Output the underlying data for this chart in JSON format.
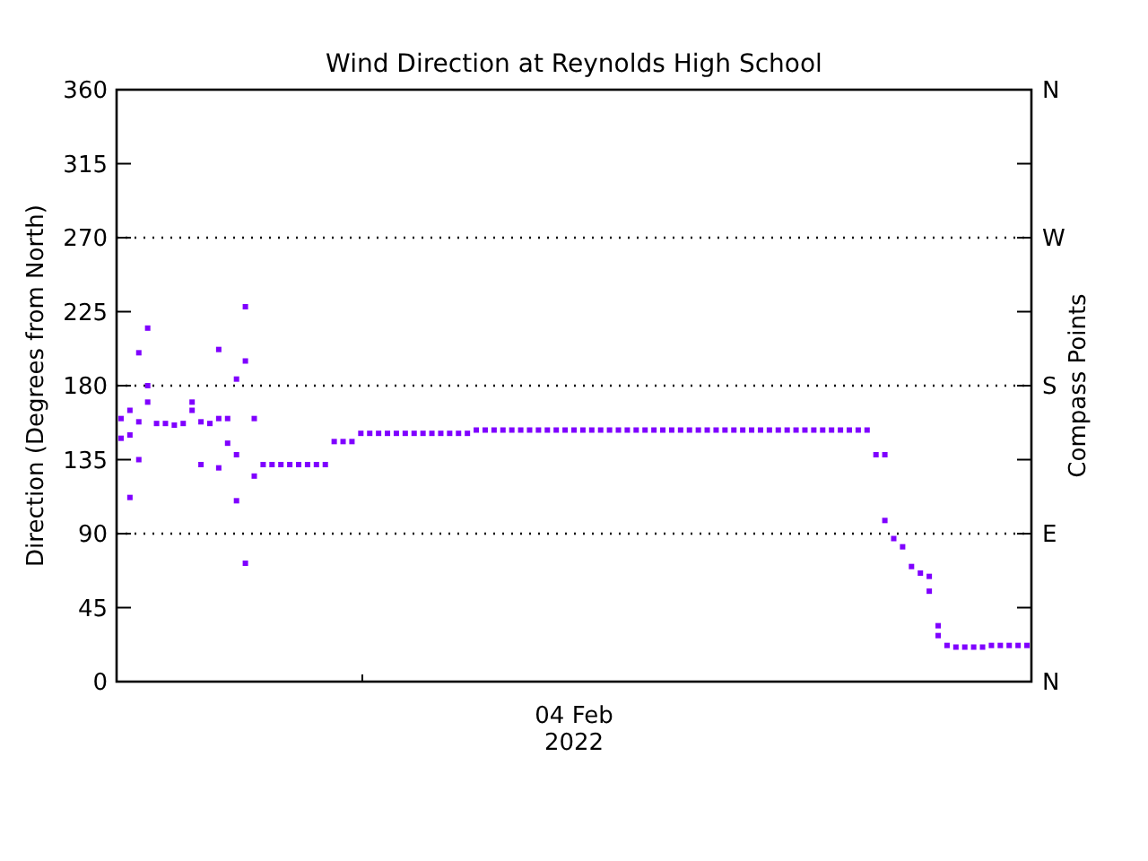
{
  "chart_data": {
    "type": "scatter",
    "title": "Wind Direction at Reynolds High School",
    "xlabel": "04 Feb 2022",
    "ylabel": "Direction (Degrees from North)",
    "y2label": "Compass Points",
    "categories": [
      null,
      null,
      null,
      null,
      null,
      null,
      null,
      null,
      null,
      null,
      null,
      null,
      null,
      null,
      null,
      null,
      null,
      null,
      null,
      null,
      null,
      null,
      null,
      null,
      null,
      null,
      null,
      null,
      null,
      null,
      null,
      null,
      null,
      null,
      null,
      null,
      null,
      null,
      null,
      null,
      null,
      null,
      null,
      null,
      null,
      null,
      null,
      null,
      null,
      null,
      null,
      null,
      null,
      null,
      null,
      null,
      null,
      null,
      null,
      null,
      null,
      null,
      null,
      null,
      null,
      null,
      null,
      null,
      null,
      null,
      null,
      null,
      null,
      null,
      null,
      null,
      null,
      null,
      null,
      null,
      null,
      null,
      null,
      null,
      null,
      null,
      null,
      null,
      null,
      null,
      null,
      null,
      null,
      null,
      null,
      null,
      null,
      null,
      null,
      null,
      null,
      null,
      null
    ],
    "ylim": [
      0,
      360
    ],
    "yticks": [
      0,
      45,
      90,
      135,
      180,
      225,
      270,
      315,
      360
    ],
    "y2_categories": [
      "N",
      null,
      "W",
      null,
      "S",
      null,
      "E",
      null,
      "N"
    ],
    "marker": "square",
    "ref_lines": [
      {
        "axis": "y",
        "value": 90,
        "color": "#000000",
        "line_style": "dotted"
      },
      {
        "axis": "y",
        "value": 180,
        "color": "#000000",
        "line_style": "dotted"
      },
      {
        "axis": "y",
        "value": 270,
        "color": "#000000",
        "line_style": "dotted"
      }
    ],
    "series": [
      {
        "color": "#7f00ff",
        "values": [
          160,
          150,
          158,
          180,
          157,
          157,
          156,
          157,
          165,
          158,
          157,
          160,
          160,
          138,
          195,
          160,
          132,
          132,
          132,
          132,
          132,
          132,
          132,
          132,
          146,
          146,
          146,
          151,
          151,
          151,
          151,
          151,
          151,
          151,
          151,
          151,
          151,
          151,
          151,
          151,
          153,
          153,
          153,
          153,
          153,
          153,
          153,
          153,
          153,
          153,
          153,
          153,
          153,
          153,
          153,
          153,
          153,
          153,
          153,
          153,
          153,
          153,
          153,
          153,
          153,
          153,
          153,
          153,
          153,
          153,
          153,
          153,
          153,
          153,
          153,
          153,
          153,
          153,
          153,
          153,
          153,
          153,
          153,
          153,
          153,
          138,
          138,
          87,
          82,
          70,
          66,
          64,
          28,
          22,
          21,
          21,
          21,
          21,
          22,
          22,
          22,
          22,
          22
        ]
      },
      {
        "color": "#7f00ff",
        "values": [
          148,
          112,
          200,
          215,
          null,
          null,
          null,
          null,
          170,
          132,
          null,
          202,
          145,
          110,
          72,
          125,
          null,
          null,
          null,
          null,
          null,
          null,
          null,
          null,
          null,
          null,
          null,
          null,
          null,
          null,
          null,
          null,
          null,
          null,
          null,
          null,
          null,
          null,
          null,
          null,
          null,
          null,
          null,
          null,
          null,
          null,
          null,
          null,
          null,
          null,
          null,
          null,
          null,
          null,
          null,
          null,
          null,
          null,
          null,
          null,
          null,
          null,
          null,
          null,
          null,
          null,
          null,
          null,
          null,
          null,
          null,
          null,
          null,
          null,
          null,
          null,
          null,
          null,
          null,
          null,
          null,
          null,
          null,
          null,
          null,
          null,
          98,
          null,
          null,
          null,
          null,
          55,
          34,
          null,
          null,
          null,
          null,
          null,
          null,
          null,
          null,
          null,
          null
        ]
      },
      {
        "color": "#7f00ff",
        "values": [
          null,
          165,
          135,
          170,
          null,
          null,
          null,
          null,
          null,
          null,
          null,
          130,
          null,
          184,
          228,
          null,
          null,
          null,
          null,
          null,
          null,
          null,
          null,
          null,
          null,
          null,
          null,
          null,
          null,
          null,
          null,
          null,
          null,
          null,
          null,
          null,
          null,
          null,
          null,
          null,
          null,
          null,
          null,
          null,
          null,
          null,
          null,
          null,
          null,
          null,
          null,
          null,
          null,
          null,
          null,
          null,
          null,
          null,
          null,
          null,
          null,
          null,
          null,
          null,
          null,
          null,
          null,
          null,
          null,
          null,
          null,
          null,
          null,
          null,
          null,
          null,
          null,
          null,
          null,
          null,
          null,
          null,
          null,
          null,
          null,
          null,
          null,
          null,
          null,
          null,
          null,
          null,
          null,
          null,
          null,
          null,
          null,
          null,
          null,
          null,
          null,
          null,
          null
        ]
      }
    ]
  }
}
